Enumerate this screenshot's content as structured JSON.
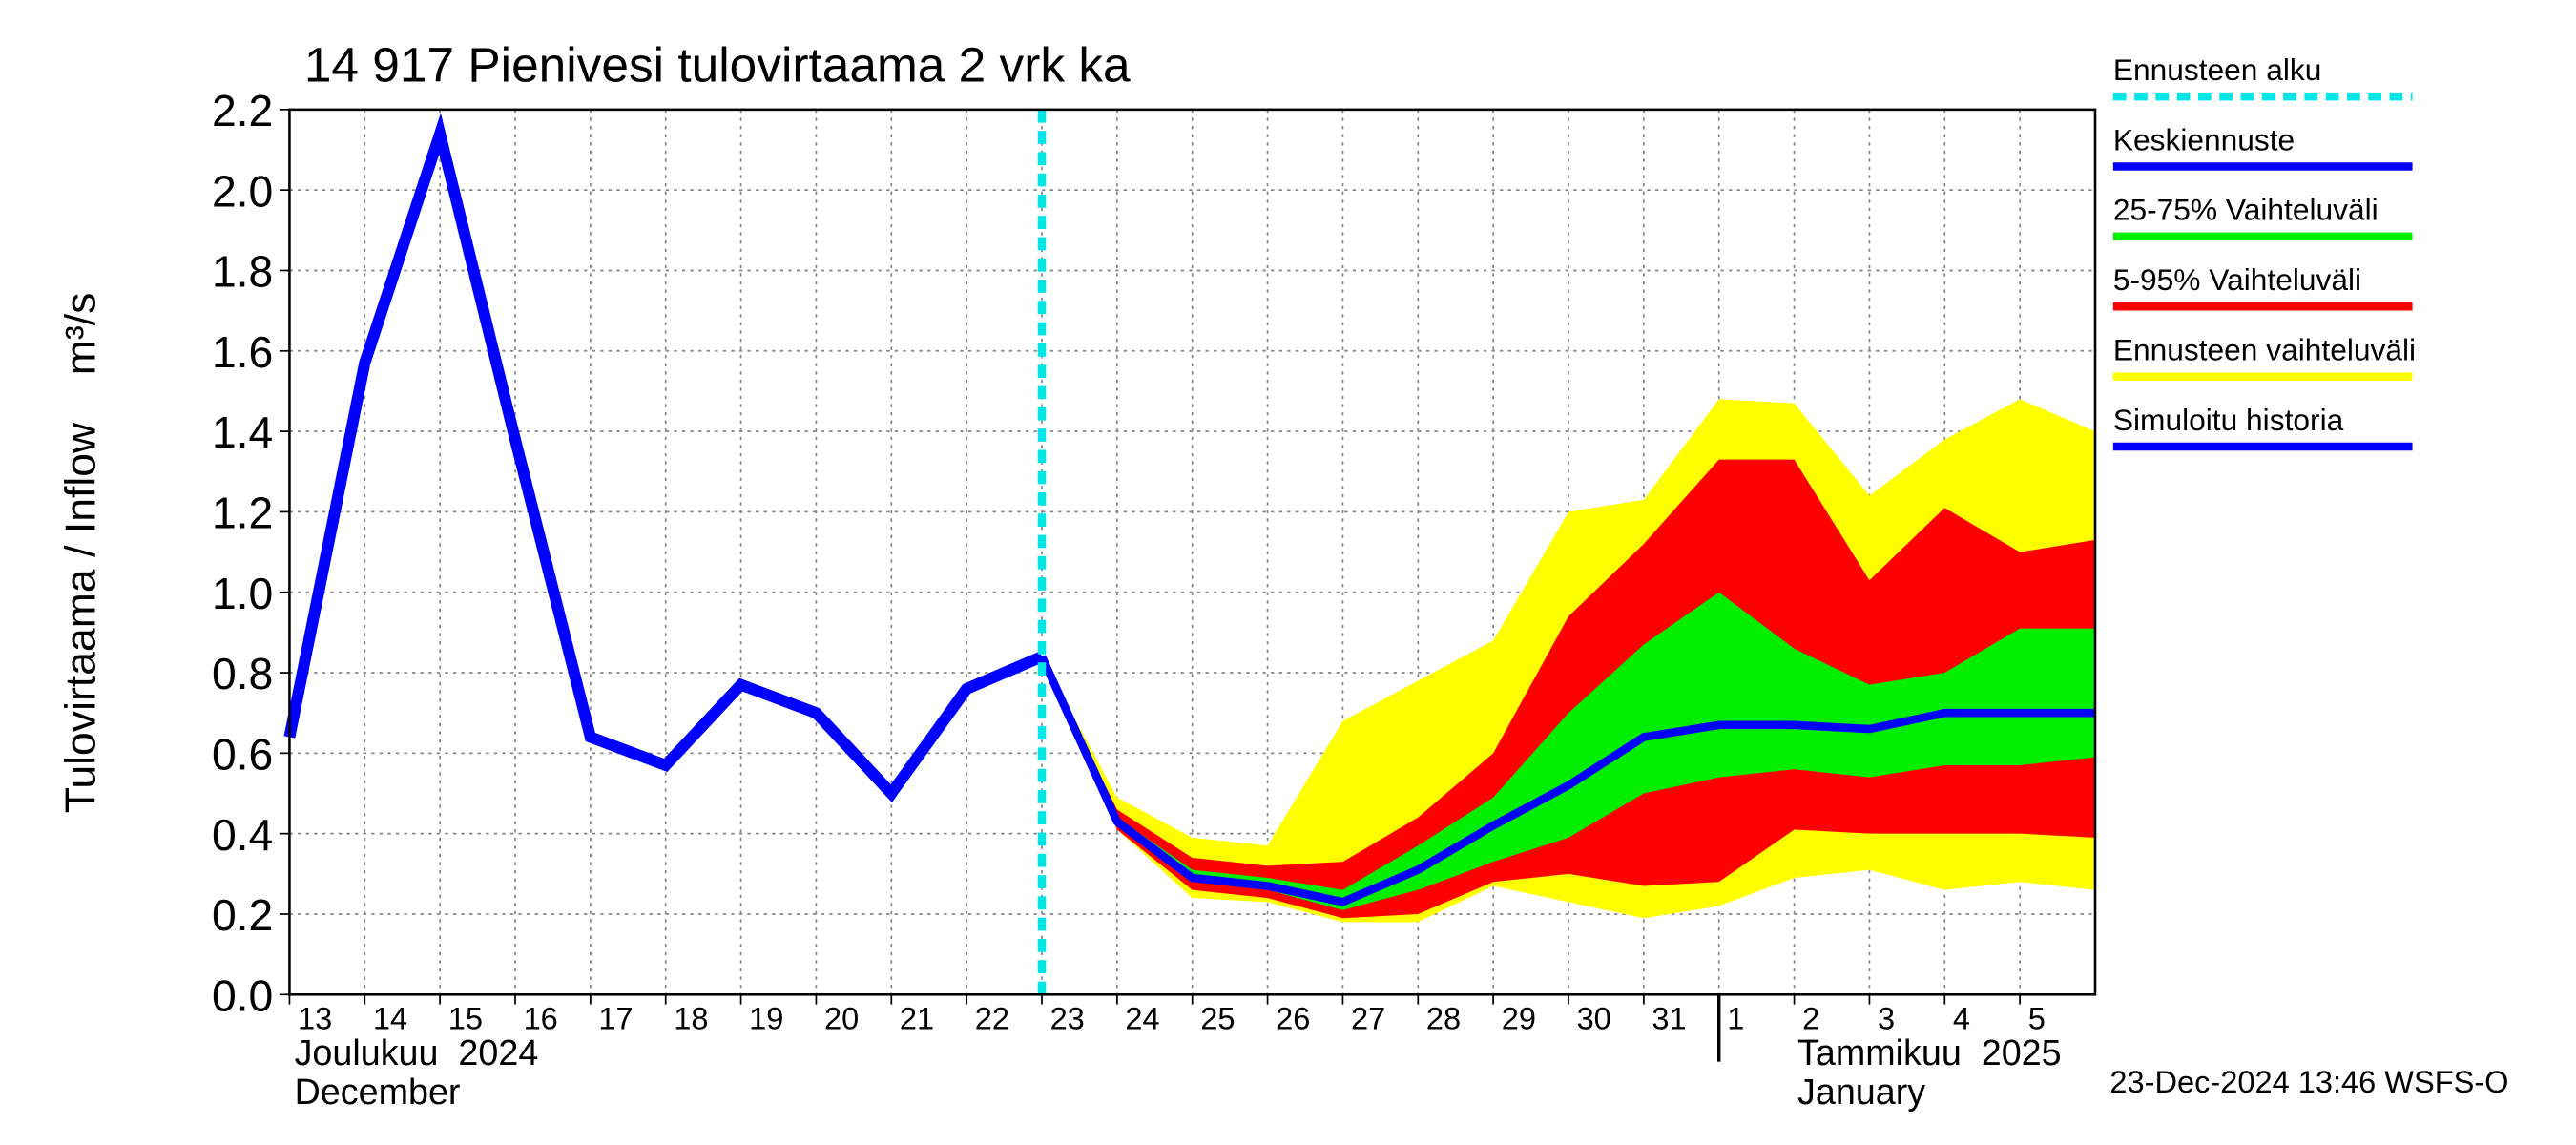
{
  "chart_data": {
    "type": "band-forecast",
    "title": "14 917 Pienivesi tulovirtaama 2 vrk ka",
    "y_label": "Tulovirtaama / Inflow    m³/s",
    "footer": "23-Dec-2024 13:46 WSFS-O",
    "month_labels": [
      [
        "Joulukuu  2024",
        "December"
      ],
      [
        "Tammikuu  2025",
        "January"
      ]
    ],
    "month_starts": [
      "2024-12-13",
      "2025-01-01"
    ],
    "xlim": [
      "2024-12-13",
      "2025-01-06"
    ],
    "xticks": [
      {
        "value": "2024-12-13",
        "label": "13"
      },
      {
        "value": "2024-12-14",
        "label": "14"
      },
      {
        "value": "2024-12-15",
        "label": "15"
      },
      {
        "value": "2024-12-16",
        "label": "16"
      },
      {
        "value": "2024-12-17",
        "label": "17"
      },
      {
        "value": "2024-12-18",
        "label": "18"
      },
      {
        "value": "2024-12-19",
        "label": "19"
      },
      {
        "value": "2024-12-20",
        "label": "20"
      },
      {
        "value": "2024-12-21",
        "label": "21"
      },
      {
        "value": "2024-12-22",
        "label": "22"
      },
      {
        "value": "2024-12-23",
        "label": "23"
      },
      {
        "value": "2024-12-24",
        "label": "24"
      },
      {
        "value": "2024-12-25",
        "label": "25"
      },
      {
        "value": "2024-12-26",
        "label": "26"
      },
      {
        "value": "2024-12-27",
        "label": "27"
      },
      {
        "value": "2024-12-28",
        "label": "28"
      },
      {
        "value": "2024-12-29",
        "label": "29"
      },
      {
        "value": "2024-12-30",
        "label": "30"
      },
      {
        "value": "2024-12-31",
        "label": "31"
      },
      {
        "value": "2025-01-01",
        "label": "1"
      },
      {
        "value": "2025-01-02",
        "label": "2"
      },
      {
        "value": "2025-01-03",
        "label": "3"
      },
      {
        "value": "2025-01-04",
        "label": "4"
      },
      {
        "value": "2025-01-05",
        "label": "5"
      }
    ],
    "ylim": [
      0,
      2.2
    ],
    "yticks": [
      {
        "value": 0,
        "label": "0.0"
      },
      0.2,
      0.4,
      0.6,
      0.8,
      {
        "value": 1,
        "label": "1.0"
      },
      1.2,
      1.4,
      1.6,
      1.8,
      {
        "value": 2,
        "label": "2.0"
      },
      2.2
    ],
    "grid": true,
    "forecast_start": {
      "name": "Ennusteen alku",
      "x": "2024-12-23",
      "color": "#00e5e5"
    },
    "series": [
      {
        "name": "Keskiennuste",
        "kind": "line",
        "color": "#0000ff",
        "x": [
          "2024-12-23",
          "2024-12-24",
          "2024-12-25",
          "2024-12-26",
          "2024-12-27",
          "2024-12-28",
          "2024-12-29",
          "2024-12-30",
          "2024-12-31",
          "2025-01-01",
          "2025-01-02",
          "2025-01-03",
          "2025-01-04",
          "2025-01-05",
          "2025-01-06"
        ],
        "values": [
          0.84,
          0.43,
          0.29,
          0.27,
          0.23,
          0.31,
          0.42,
          0.52,
          0.64,
          0.67,
          0.67,
          0.66,
          0.7,
          0.7,
          0.7
        ]
      },
      {
        "name": "25-75% Vaihteluväli",
        "kind": "band",
        "color": "#00ee00",
        "x": [
          "2024-12-23",
          "2024-12-24",
          "2024-12-25",
          "2024-12-26",
          "2024-12-27",
          "2024-12-28",
          "2024-12-29",
          "2024-12-30",
          "2024-12-31",
          "2025-01-01",
          "2025-01-02",
          "2025-01-03",
          "2025-01-04",
          "2025-01-05",
          "2025-01-06"
        ],
        "upper": [
          0.84,
          0.44,
          0.31,
          0.29,
          0.26,
          0.37,
          0.49,
          0.7,
          0.87,
          1.0,
          0.86,
          0.77,
          0.8,
          0.91,
          0.91
        ],
        "lower": [
          0.84,
          0.43,
          0.28,
          0.26,
          0.21,
          0.26,
          0.33,
          0.39,
          0.5,
          0.54,
          0.56,
          0.54,
          0.57,
          0.57,
          0.59
        ]
      },
      {
        "name": "5-95% Vaihteluväli",
        "kind": "band",
        "color": "#ff0000",
        "x": [
          "2024-12-23",
          "2024-12-24",
          "2024-12-25",
          "2024-12-26",
          "2024-12-27",
          "2024-12-28",
          "2024-12-29",
          "2024-12-30",
          "2024-12-31",
          "2025-01-01",
          "2025-01-02",
          "2025-01-03",
          "2025-01-04",
          "2025-01-05",
          "2025-01-06"
        ],
        "upper": [
          0.84,
          0.46,
          0.34,
          0.32,
          0.33,
          0.44,
          0.6,
          0.94,
          1.12,
          1.33,
          1.33,
          1.03,
          1.21,
          1.1,
          1.13
        ],
        "lower": [
          0.84,
          0.41,
          0.26,
          0.24,
          0.19,
          0.2,
          0.28,
          0.3,
          0.27,
          0.28,
          0.41,
          0.4,
          0.4,
          0.4,
          0.39
        ]
      },
      {
        "name": "Ennusteen vaihteluväli",
        "kind": "band",
        "color": "#ffff00",
        "x": [
          "2024-12-23",
          "2024-12-24",
          "2024-12-25",
          "2024-12-26",
          "2024-12-27",
          "2024-12-28",
          "2024-12-29",
          "2024-12-30",
          "2024-12-31",
          "2025-01-01",
          "2025-01-02",
          "2025-01-03",
          "2025-01-04",
          "2025-01-05",
          "2025-01-06"
        ],
        "upper": [
          0.84,
          0.49,
          0.39,
          0.37,
          0.68,
          0.78,
          0.88,
          1.2,
          1.23,
          1.48,
          1.47,
          1.24,
          1.38,
          1.48,
          1.4
        ],
        "lower": [
          0.84,
          0.41,
          0.24,
          0.23,
          0.18,
          0.18,
          0.27,
          0.23,
          0.19,
          0.22,
          0.29,
          0.31,
          0.26,
          0.28,
          0.26
        ]
      },
      {
        "name": "Simuloitu historia",
        "kind": "line",
        "color": "#0000ff",
        "x": [
          "2024-12-13",
          "2024-12-14",
          "2024-12-15",
          "2024-12-16",
          "2024-12-17",
          "2024-12-18",
          "2024-12-19",
          "2024-12-20",
          "2024-12-21",
          "2024-12-22",
          "2024-12-23"
        ],
        "values": [
          0.64,
          1.57,
          2.14,
          1.38,
          0.64,
          0.57,
          0.77,
          0.7,
          0.5,
          0.76,
          0.84
        ]
      }
    ]
  }
}
